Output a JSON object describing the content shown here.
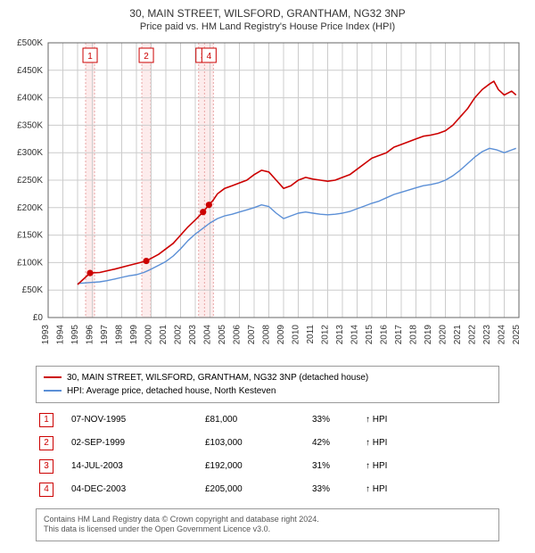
{
  "title_line1": "30, MAIN STREET, WILSFORD, GRANTHAM, NG32 3NP",
  "title_line2": "Price paid vs. HM Land Registry's House Price Index (HPI)",
  "chart": {
    "type": "line",
    "background_color": "#ffffff",
    "plot_border_color": "#666666",
    "grid_color": "#cccccc",
    "marker_band_fill": "#fdecec",
    "marker_band_stroke": "#e9a5a5",
    "marker_band_dash": "2,2",
    "xlim": [
      1993,
      2025
    ],
    "ylim": [
      0,
      500000
    ],
    "ytick_step": 50000,
    "ytick_labels": [
      "£0",
      "£50K",
      "£100K",
      "£150K",
      "£200K",
      "£250K",
      "£300K",
      "£350K",
      "£400K",
      "£450K",
      "£500K"
    ],
    "xtick_step": 1,
    "xtick_labels": [
      "1993",
      "1994",
      "1995",
      "1996",
      "1997",
      "1998",
      "1999",
      "2000",
      "2001",
      "2002",
      "2003",
      "2004",
      "2005",
      "2006",
      "2007",
      "2008",
      "2009",
      "2010",
      "2011",
      "2012",
      "2013",
      "2014",
      "2015",
      "2016",
      "2017",
      "2018",
      "2019",
      "2020",
      "2021",
      "2022",
      "2023",
      "2024",
      "2025"
    ],
    "axis_fontsize": 10,
    "axis_color": "#333333",
    "series": [
      {
        "name": "price_paid",
        "label": "30, MAIN STREET, WILSFORD, GRANTHAM, NG32 3NP (detached house)",
        "color": "#cc0000",
        "line_width": 1.6,
        "points": [
          [
            1995.0,
            60000
          ],
          [
            1995.85,
            81000
          ],
          [
            1996.5,
            82000
          ],
          [
            1997.5,
            88000
          ],
          [
            1998.5,
            95000
          ],
          [
            1999.67,
            103000
          ],
          [
            2000.5,
            115000
          ],
          [
            2001.5,
            135000
          ],
          [
            2002.5,
            165000
          ],
          [
            2003.1,
            180000
          ],
          [
            2003.53,
            192000
          ],
          [
            2003.93,
            205000
          ],
          [
            2004.2,
            213000
          ],
          [
            2004.5,
            225000
          ],
          [
            2005.0,
            235000
          ],
          [
            2005.5,
            240000
          ],
          [
            2006.0,
            245000
          ],
          [
            2006.5,
            250000
          ],
          [
            2007.0,
            260000
          ],
          [
            2007.5,
            268000
          ],
          [
            2008.0,
            265000
          ],
          [
            2008.5,
            250000
          ],
          [
            2009.0,
            235000
          ],
          [
            2009.5,
            240000
          ],
          [
            2010.0,
            250000
          ],
          [
            2010.5,
            255000
          ],
          [
            2011.0,
            252000
          ],
          [
            2011.5,
            250000
          ],
          [
            2012.0,
            248000
          ],
          [
            2012.5,
            250000
          ],
          [
            2013.0,
            255000
          ],
          [
            2013.5,
            260000
          ],
          [
            2014.0,
            270000
          ],
          [
            2014.5,
            280000
          ],
          [
            2015.0,
            290000
          ],
          [
            2015.5,
            295000
          ],
          [
            2016.0,
            300000
          ],
          [
            2016.5,
            310000
          ],
          [
            2017.0,
            315000
          ],
          [
            2017.5,
            320000
          ],
          [
            2018.0,
            325000
          ],
          [
            2018.5,
            330000
          ],
          [
            2019.0,
            332000
          ],
          [
            2019.5,
            335000
          ],
          [
            2020.0,
            340000
          ],
          [
            2020.5,
            350000
          ],
          [
            2021.0,
            365000
          ],
          [
            2021.5,
            380000
          ],
          [
            2022.0,
            400000
          ],
          [
            2022.5,
            415000
          ],
          [
            2023.0,
            425000
          ],
          [
            2023.3,
            430000
          ],
          [
            2023.6,
            415000
          ],
          [
            2024.0,
            405000
          ],
          [
            2024.5,
            412000
          ],
          [
            2024.8,
            405000
          ]
        ],
        "markers": [
          {
            "n": "1",
            "x": 1995.85,
            "y": 81000
          },
          {
            "n": "2",
            "x": 1999.67,
            "y": 103000
          },
          {
            "n": "3",
            "x": 2003.53,
            "y": 192000
          },
          {
            "n": "4",
            "x": 2003.93,
            "y": 205000
          }
        ],
        "dot_radius": 3.6
      },
      {
        "name": "hpi",
        "label": "HPI: Average price, detached house, North Kesteven",
        "color": "#5b8fd6",
        "line_width": 1.4,
        "points": [
          [
            1995.0,
            62000
          ],
          [
            1995.5,
            63000
          ],
          [
            1996.0,
            64000
          ],
          [
            1996.5,
            65000
          ],
          [
            1997.0,
            67000
          ],
          [
            1997.5,
            70000
          ],
          [
            1998.0,
            73000
          ],
          [
            1998.5,
            76000
          ],
          [
            1999.0,
            78000
          ],
          [
            1999.5,
            82000
          ],
          [
            2000.0,
            88000
          ],
          [
            2000.5,
            95000
          ],
          [
            2001.0,
            102000
          ],
          [
            2001.5,
            112000
          ],
          [
            2002.0,
            125000
          ],
          [
            2002.5,
            140000
          ],
          [
            2003.0,
            152000
          ],
          [
            2003.5,
            162000
          ],
          [
            2004.0,
            172000
          ],
          [
            2004.5,
            180000
          ],
          [
            2005.0,
            185000
          ],
          [
            2005.5,
            188000
          ],
          [
            2006.0,
            192000
          ],
          [
            2006.5,
            196000
          ],
          [
            2007.0,
            200000
          ],
          [
            2007.5,
            205000
          ],
          [
            2008.0,
            202000
          ],
          [
            2008.5,
            190000
          ],
          [
            2009.0,
            180000
          ],
          [
            2009.5,
            185000
          ],
          [
            2010.0,
            190000
          ],
          [
            2010.5,
            192000
          ],
          [
            2011.0,
            190000
          ],
          [
            2011.5,
            188000
          ],
          [
            2012.0,
            187000
          ],
          [
            2012.5,
            188000
          ],
          [
            2013.0,
            190000
          ],
          [
            2013.5,
            193000
          ],
          [
            2014.0,
            198000
          ],
          [
            2014.5,
            203000
          ],
          [
            2015.0,
            208000
          ],
          [
            2015.5,
            212000
          ],
          [
            2016.0,
            218000
          ],
          [
            2016.5,
            224000
          ],
          [
            2017.0,
            228000
          ],
          [
            2017.5,
            232000
          ],
          [
            2018.0,
            236000
          ],
          [
            2018.5,
            240000
          ],
          [
            2019.0,
            242000
          ],
          [
            2019.5,
            245000
          ],
          [
            2020.0,
            250000
          ],
          [
            2020.5,
            258000
          ],
          [
            2021.0,
            268000
          ],
          [
            2021.5,
            280000
          ],
          [
            2022.0,
            292000
          ],
          [
            2022.5,
            302000
          ],
          [
            2023.0,
            308000
          ],
          [
            2023.5,
            305000
          ],
          [
            2024.0,
            300000
          ],
          [
            2024.5,
            305000
          ],
          [
            2024.8,
            308000
          ]
        ]
      }
    ]
  },
  "legend": {
    "items": [
      {
        "color": "#cc0000",
        "label": "30, MAIN STREET, WILSFORD, GRANTHAM, NG32 3NP (detached house)"
      },
      {
        "color": "#5b8fd6",
        "label": "HPI: Average price, detached house, North Kesteven"
      }
    ]
  },
  "transactions": [
    {
      "n": "1",
      "date": "07-NOV-1995",
      "price": "£81,000",
      "pct": "33%",
      "suffix": "↑ HPI"
    },
    {
      "n": "2",
      "date": "02-SEP-1999",
      "price": "£103,000",
      "pct": "42%",
      "suffix": "↑ HPI"
    },
    {
      "n": "3",
      "date": "14-JUL-2003",
      "price": "£192,000",
      "pct": "31%",
      "suffix": "↑ HPI"
    },
    {
      "n": "4",
      "date": "04-DEC-2003",
      "price": "£205,000",
      "pct": "33%",
      "suffix": "↑ HPI"
    }
  ],
  "license_line1": "Contains HM Land Registry data © Crown copyright and database right 2024.",
  "license_line2": "This data is licensed under the Open Government Licence v3.0."
}
